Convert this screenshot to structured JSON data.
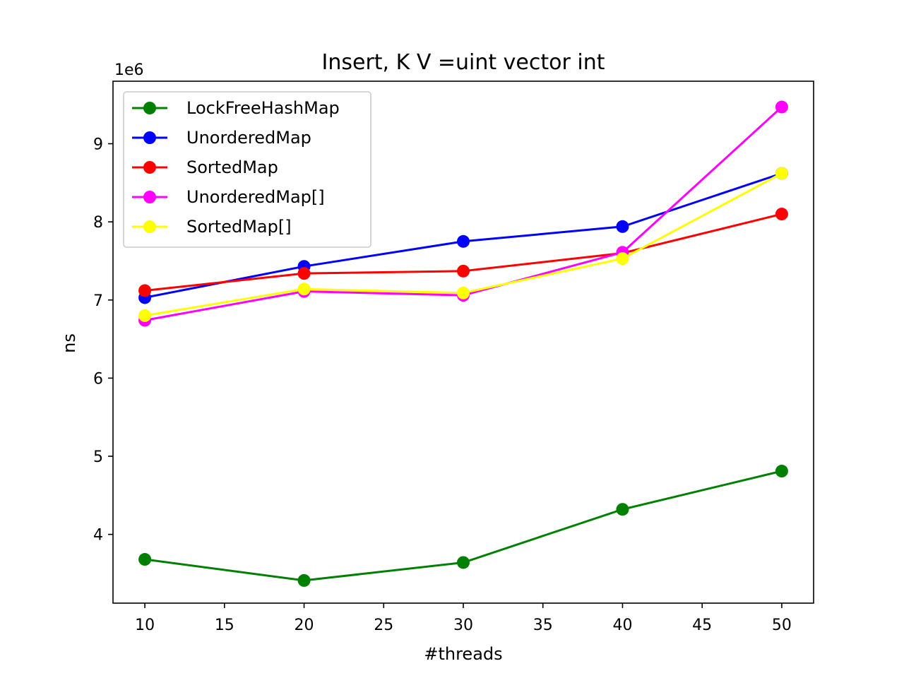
{
  "chart_data": {
    "type": "line",
    "title": "Insert, K V =uint vector int",
    "xlabel": "#threads",
    "ylabel": "ns",
    "y_offset_label": "1e6",
    "xlim": [
      8,
      52
    ],
    "ylim": [
      3.12,
      9.8
    ],
    "x_ticks": [
      10,
      15,
      20,
      25,
      30,
      35,
      40,
      45,
      50
    ],
    "y_ticks": [
      4,
      5,
      6,
      7,
      8,
      9
    ],
    "legend_position": "upper-left",
    "grid": false,
    "x": [
      10,
      20,
      30,
      40,
      50
    ],
    "series": [
      {
        "name": "LockFreeHashMap",
        "color": "#008000",
        "values": [
          3.68,
          3.41,
          3.64,
          4.32,
          4.81
        ]
      },
      {
        "name": "UnorderedMap",
        "color": "#0000ff",
        "values": [
          7.03,
          7.43,
          7.75,
          7.94,
          8.62
        ]
      },
      {
        "name": "SortedMap",
        "color": "#ff0000",
        "values": [
          7.12,
          7.34,
          7.37,
          7.6,
          8.1
        ]
      },
      {
        "name": "UnorderedMap[]",
        "color": "#ff00ff",
        "values": [
          6.74,
          7.11,
          7.06,
          7.61,
          9.47
        ]
      },
      {
        "name": "SortedMap[]",
        "color": "#ffff00",
        "values": [
          6.8,
          7.14,
          7.09,
          7.53,
          8.62
        ]
      }
    ]
  }
}
